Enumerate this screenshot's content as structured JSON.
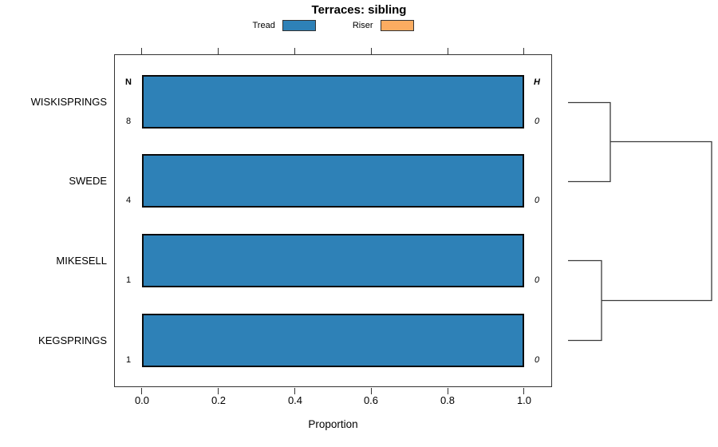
{
  "title": "Terraces: sibling",
  "legend": {
    "items": [
      {
        "label": "Tread",
        "color": "#2e81b7"
      },
      {
        "label": "Riser",
        "color": "#fbac61"
      }
    ]
  },
  "columns": {
    "left_header": "N",
    "right_header": "H"
  },
  "rows": [
    {
      "name": "WISKISPRINGS",
      "n": "8",
      "h": "0"
    },
    {
      "name": "SWEDE",
      "n": "4",
      "h": "0"
    },
    {
      "name": "MIKESELL",
      "n": "1",
      "h": "0"
    },
    {
      "name": "KEGSPRINGS",
      "n": "1",
      "h": "0"
    }
  ],
  "axis": {
    "tick_labels": [
      "0.0",
      "0.2",
      "0.4",
      "0.6",
      "0.8",
      "1.0"
    ],
    "xlabel": "Proportion"
  },
  "chart_data": {
    "type": "bar",
    "orientation": "horizontal",
    "title": "Terraces: sibling",
    "categories": [
      "WISKISPRINGS",
      "SWEDE",
      "MIKESELL",
      "KEGSPRINGS"
    ],
    "series": [
      {
        "name": "Tread",
        "color": "#2e81b7",
        "values": [
          1.0,
          1.0,
          1.0,
          1.0
        ]
      },
      {
        "name": "Riser",
        "color": "#fbac61",
        "values": [
          0.0,
          0.0,
          0.0,
          0.0
        ]
      }
    ],
    "n_counts": [
      8,
      4,
      1,
      1
    ],
    "h_values": [
      0,
      0,
      0,
      0
    ],
    "xlabel": "Proportion",
    "xlim": [
      0,
      1
    ],
    "x_ticks": [
      0.0,
      0.2,
      0.4,
      0.6,
      0.8,
      1.0
    ],
    "grid": false,
    "legend_position": "top",
    "top_axis_ticks_mirrored": true,
    "dendrogram": {
      "side": "right",
      "merges": [
        [
          "WISKISPRINGS",
          "SWEDE"
        ],
        [
          "MIKESELL",
          "KEGSPRINGS"
        ]
      ],
      "root_joins": [
        "WISKISPRINGS+SWEDE",
        "MIKESELL+KEGSPRINGS"
      ]
    }
  }
}
